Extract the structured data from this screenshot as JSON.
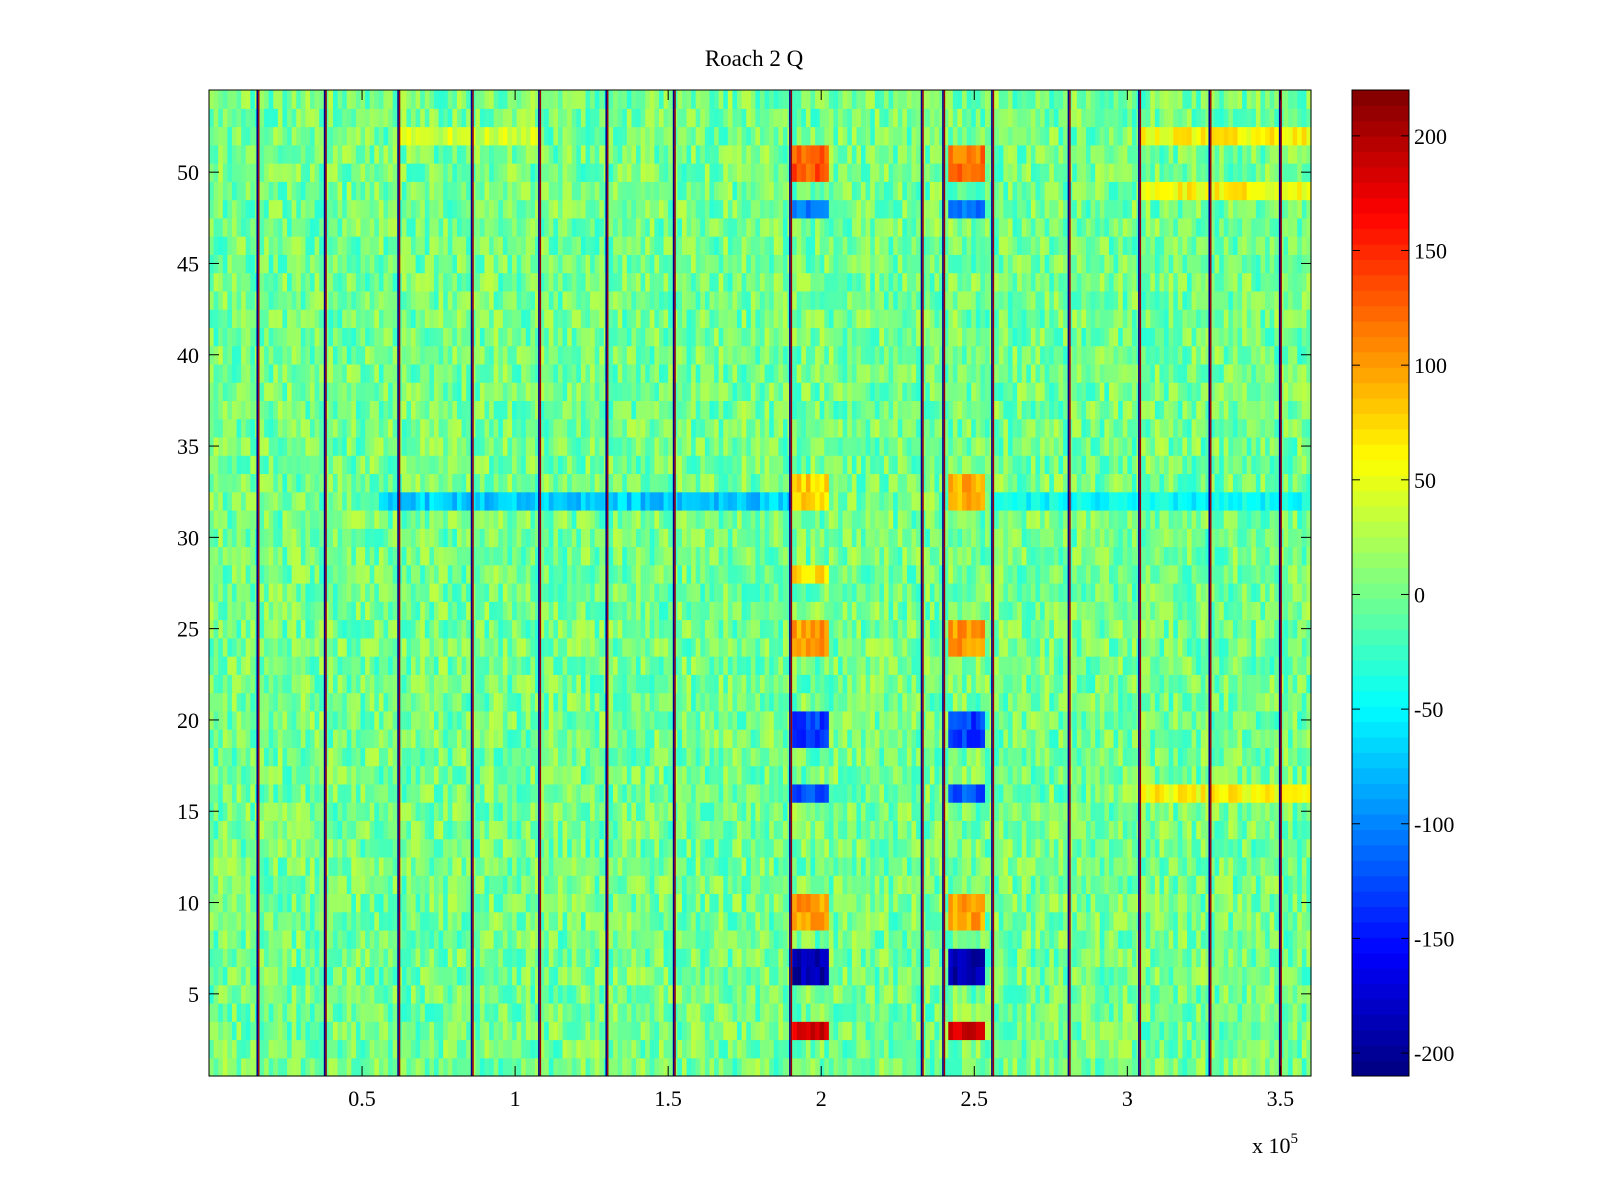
{
  "chart_data": {
    "type": "heatmap",
    "title": "Roach 2 Q",
    "xlabel": "",
    "ylabel": "",
    "x_multiplier_label": "x 10",
    "x_multiplier_exponent": "5",
    "xlim": [
      0,
      360000
    ],
    "ylim": [
      0.5,
      54.5
    ],
    "x_ticks": [
      {
        "value": 50000,
        "label": "0.5"
      },
      {
        "value": 100000,
        "label": "1"
      },
      {
        "value": 150000,
        "label": "1.5"
      },
      {
        "value": 200000,
        "label": "2"
      },
      {
        "value": 250000,
        "label": "2.5"
      },
      {
        "value": 300000,
        "label": "3"
      },
      {
        "value": 350000,
        "label": "3.5"
      }
    ],
    "y_ticks": [
      {
        "value": 5,
        "label": "5"
      },
      {
        "value": 10,
        "label": "10"
      },
      {
        "value": 15,
        "label": "15"
      },
      {
        "value": 20,
        "label": "20"
      },
      {
        "value": 25,
        "label": "25"
      },
      {
        "value": 30,
        "label": "30"
      },
      {
        "value": 35,
        "label": "35"
      },
      {
        "value": 40,
        "label": "40"
      },
      {
        "value": 45,
        "label": "45"
      },
      {
        "value": 50,
        "label": "50"
      }
    ],
    "colorbar": {
      "colormap": "jet",
      "range": [
        -210,
        220
      ],
      "ticks": [
        {
          "value": 200,
          "label": "200"
        },
        {
          "value": 150,
          "label": "150"
        },
        {
          "value": 100,
          "label": "100"
        },
        {
          "value": 50,
          "label": "50"
        },
        {
          "value": 0,
          "label": "0"
        },
        {
          "value": -50,
          "label": "-50"
        },
        {
          "value": -100,
          "label": "-100"
        },
        {
          "value": -150,
          "label": "-150"
        },
        {
          "value": -200,
          "label": "-200"
        }
      ]
    },
    "rows": 54,
    "background_level": 0,
    "noise_amplitude": 40,
    "vertical_spike_lines": [
      16000,
      38000,
      62000,
      86000,
      108000,
      130000,
      152000,
      190000,
      233000,
      240000,
      256000,
      281000,
      304000,
      327000,
      350000
    ],
    "features": [
      {
        "name": "channel-32-band-left",
        "x_range": [
          55000,
          190000
        ],
        "rows": [
          32
        ],
        "value": -70
      },
      {
        "name": "channel-32-band-right",
        "x_range": [
          256000,
          360000
        ],
        "rows": [
          32
        ],
        "value": -50
      },
      {
        "name": "column-a-rows-2-3",
        "x_range": [
          190000,
          202000
        ],
        "rows": [
          3
        ],
        "value": 180
      },
      {
        "name": "column-a-rows-6-8",
        "x_range": [
          190000,
          202000
        ],
        "rows": [
          6,
          7
        ],
        "value": -190
      },
      {
        "name": "column-a-rows-9-10",
        "x_range": [
          190000,
          202000
        ],
        "rows": [
          9,
          10
        ],
        "value": 100
      },
      {
        "name": "column-a-row-16",
        "x_range": [
          190000,
          202000
        ],
        "rows": [
          16
        ],
        "value": -120
      },
      {
        "name": "column-a-rows-19-20",
        "x_range": [
          190000,
          202000
        ],
        "rows": [
          19,
          20
        ],
        "value": -130
      },
      {
        "name": "column-a-rows-24-25",
        "x_range": [
          190000,
          202000
        ],
        "rows": [
          24,
          25
        ],
        "value": 100
      },
      {
        "name": "column-a-row-28",
        "x_range": [
          190000,
          202000
        ],
        "rows": [
          28
        ],
        "value": 70
      },
      {
        "name": "column-a-rows-32-33",
        "x_range": [
          190000,
          202000
        ],
        "rows": [
          32,
          33
        ],
        "value": 80
      },
      {
        "name": "column-a-row-48",
        "x_range": [
          190000,
          202000
        ],
        "rows": [
          48
        ],
        "value": -110
      },
      {
        "name": "column-a-rows-50-51",
        "x_range": [
          190000,
          202000
        ],
        "rows": [
          50,
          51
        ],
        "value": 130
      },
      {
        "name": "column-b-rows-2-3",
        "x_range": [
          242000,
          254000
        ],
        "rows": [
          3
        ],
        "value": 180
      },
      {
        "name": "column-b-rows-6-8",
        "x_range": [
          242000,
          254000
        ],
        "rows": [
          6,
          7
        ],
        "value": -190
      },
      {
        "name": "column-b-rows-9-10",
        "x_range": [
          242000,
          254000
        ],
        "rows": [
          9,
          10
        ],
        "value": 100
      },
      {
        "name": "column-b-row-16",
        "x_range": [
          242000,
          254000
        ],
        "rows": [
          16
        ],
        "value": -120
      },
      {
        "name": "column-b-rows-19-20",
        "x_range": [
          242000,
          254000
        ],
        "rows": [
          19,
          20
        ],
        "value": -130
      },
      {
        "name": "column-b-rows-24-25",
        "x_range": [
          242000,
          254000
        ],
        "rows": [
          24,
          25
        ],
        "value": 100
      },
      {
        "name": "column-b-rows-32-33",
        "x_range": [
          242000,
          254000
        ],
        "rows": [
          32,
          33
        ],
        "value": 90
      },
      {
        "name": "column-b-row-48",
        "x_range": [
          242000,
          254000
        ],
        "rows": [
          48
        ],
        "value": -110
      },
      {
        "name": "column-b-rows-50-51",
        "x_range": [
          242000,
          254000
        ],
        "rows": [
          50,
          51
        ],
        "value": 120
      },
      {
        "name": "right-rows-16-17-warm",
        "x_range": [
          304000,
          360000
        ],
        "rows": [
          16
        ],
        "value": 60
      },
      {
        "name": "right-rows-49-warm",
        "x_range": [
          304000,
          360000
        ],
        "rows": [
          49
        ],
        "value": 60
      },
      {
        "name": "right-rows-52-warm",
        "x_range": [
          304000,
          360000
        ],
        "rows": [
          52
        ],
        "value": 60
      },
      {
        "name": "left-row-52-warm",
        "x_range": [
          62000,
          108000
        ],
        "rows": [
          52
        ],
        "value": 40
      }
    ]
  }
}
